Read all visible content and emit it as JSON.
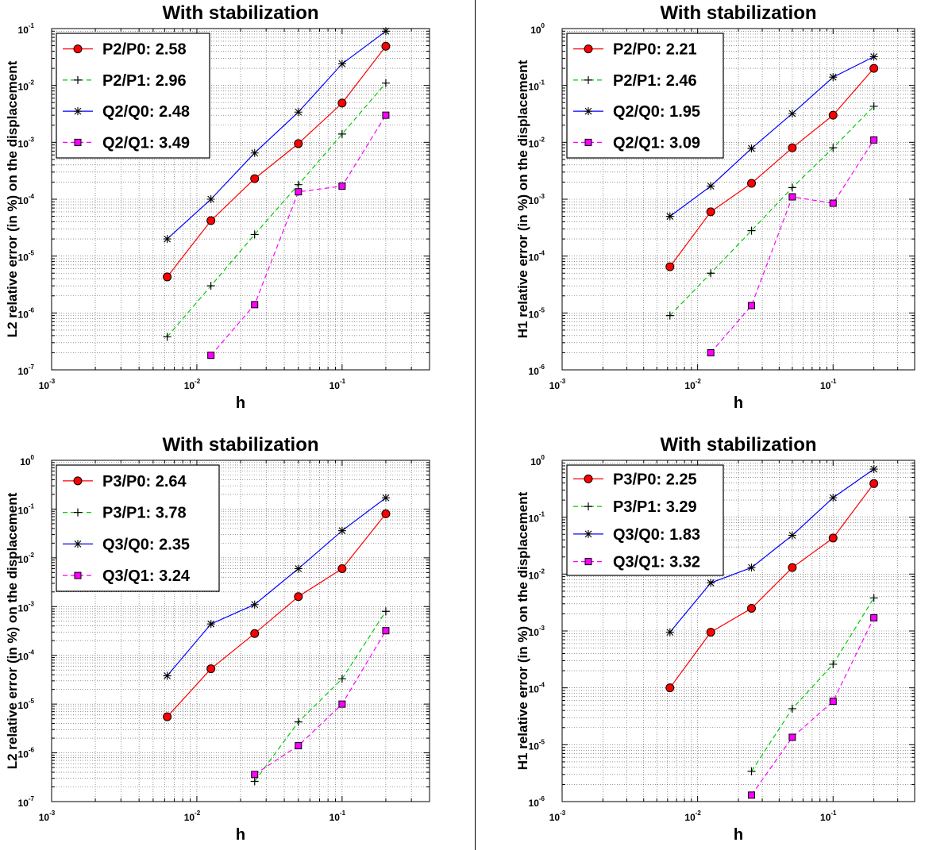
{
  "charts": [
    {
      "title": "With stabilization",
      "xlabel": "h",
      "ylabel": "L2 relative error (in %) on the displacement",
      "xlim": [
        0.001,
        0.4
      ],
      "ylim": [
        1e-07,
        0.1
      ],
      "xticks": [
        {
          "base": "10",
          "exp": "-3",
          "v": 0.001
        },
        {
          "base": "10",
          "exp": "-2",
          "v": 0.01
        },
        {
          "base": "10",
          "exp": "-1",
          "v": 0.1
        }
      ],
      "yticks": [
        {
          "base": "10",
          "exp": "-7",
          "v": 1e-07
        },
        {
          "base": "10",
          "exp": "-6",
          "v": 1e-06
        },
        {
          "base": "10",
          "exp": "-5",
          "v": 1e-05
        },
        {
          "base": "10",
          "exp": "-4",
          "v": 0.0001
        },
        {
          "base": "10",
          "exp": "-3",
          "v": 0.001
        },
        {
          "base": "10",
          "exp": "-2",
          "v": 0.01
        },
        {
          "base": "10",
          "exp": "-1",
          "v": 0.1
        }
      ],
      "legend": [
        "P2/P0: 2.58",
        "P2/P1: 2.96",
        "Q2/Q0: 2.48",
        "Q2/Q1: 3.49"
      ]
    },
    {
      "title": "With stabilization",
      "xlabel": "h",
      "ylabel": "H1 relative error (in %) on the displacement",
      "xlim": [
        0.001,
        0.4
      ],
      "ylim": [
        1e-06,
        1
      ],
      "xticks": [
        {
          "base": "10",
          "exp": "-3",
          "v": 0.001
        },
        {
          "base": "10",
          "exp": "-2",
          "v": 0.01
        },
        {
          "base": "10",
          "exp": "-1",
          "v": 0.1
        }
      ],
      "yticks": [
        {
          "base": "10",
          "exp": "-6",
          "v": 1e-06
        },
        {
          "base": "10",
          "exp": "-5",
          "v": 1e-05
        },
        {
          "base": "10",
          "exp": "-4",
          "v": 0.0001
        },
        {
          "base": "10",
          "exp": "-3",
          "v": 0.001
        },
        {
          "base": "10",
          "exp": "-2",
          "v": 0.01
        },
        {
          "base": "10",
          "exp": "-1",
          "v": 0.1
        },
        {
          "base": "10",
          "exp": "0",
          "v": 1
        }
      ],
      "legend": [
        "P2/P0: 2.21",
        "P2/P1: 2.46",
        "Q2/Q0: 1.95",
        "Q2/Q1: 3.09"
      ]
    },
    {
      "title": "With stabilization",
      "xlabel": "h",
      "ylabel": "L2 relative error (in %) on the displacement",
      "xlim": [
        0.001,
        0.4
      ],
      "ylim": [
        1e-07,
        1
      ],
      "xticks": [
        {
          "base": "10",
          "exp": "-3",
          "v": 0.001
        },
        {
          "base": "10",
          "exp": "-2",
          "v": 0.01
        },
        {
          "base": "10",
          "exp": "-1",
          "v": 0.1
        }
      ],
      "yticks": [
        {
          "base": "10",
          "exp": "-7",
          "v": 1e-07
        },
        {
          "base": "10",
          "exp": "-6",
          "v": 1e-06
        },
        {
          "base": "10",
          "exp": "-5",
          "v": 1e-05
        },
        {
          "base": "10",
          "exp": "-4",
          "v": 0.0001
        },
        {
          "base": "10",
          "exp": "-3",
          "v": 0.001
        },
        {
          "base": "10",
          "exp": "-2",
          "v": 0.01
        },
        {
          "base": "10",
          "exp": "-1",
          "v": 0.1
        },
        {
          "base": "10",
          "exp": "0",
          "v": 1
        }
      ],
      "legend": [
        "P3/P0: 2.64",
        "P3/P1: 3.78",
        "Q3/Q0: 2.35",
        "Q3/Q1: 3.24"
      ]
    },
    {
      "title": "With stabilization",
      "xlabel": "h",
      "ylabel": "H1 relative error (in %) on the displacement",
      "xlim": [
        0.001,
        0.4
      ],
      "ylim": [
        1e-06,
        1
      ],
      "xticks": [
        {
          "base": "10",
          "exp": "-3",
          "v": 0.001
        },
        {
          "base": "10",
          "exp": "-2",
          "v": 0.01
        },
        {
          "base": "10",
          "exp": "-1",
          "v": 0.1
        }
      ],
      "yticks": [
        {
          "base": "10",
          "exp": "-6",
          "v": 1e-06
        },
        {
          "base": "10",
          "exp": "-5",
          "v": 1e-05
        },
        {
          "base": "10",
          "exp": "-4",
          "v": 0.0001
        },
        {
          "base": "10",
          "exp": "-3",
          "v": 0.001
        },
        {
          "base": "10",
          "exp": "-2",
          "v": 0.01
        },
        {
          "base": "10",
          "exp": "-1",
          "v": 0.1
        },
        {
          "base": "10",
          "exp": "0",
          "v": 1
        }
      ],
      "legend": [
        "P3/P0: 2.25",
        "P3/P1: 3.29",
        "Q3/Q0: 1.83",
        "Q3/Q1: 3.32"
      ]
    }
  ],
  "series_styles": [
    {
      "color": "#ff0000",
      "dash": "",
      "marker": "circle",
      "marker_fill": "#ff0000"
    },
    {
      "color": "#00cc00",
      "dash": "6,4",
      "marker": "plus",
      "marker_fill": "none"
    },
    {
      "color": "#0000ff",
      "dash": "",
      "marker": "star",
      "marker_fill": "none"
    },
    {
      "color": "#ff00ff",
      "dash": "6,4",
      "marker": "square",
      "marker_fill": "#ff00ff"
    }
  ],
  "chart_data": [
    {
      "type": "line",
      "scale": "loglog",
      "title": "With stabilization",
      "xlabel": "h",
      "ylabel": "L2 relative error (in %) on the displacement",
      "xlim": [
        0.001,
        0.4
      ],
      "ylim": [
        1e-07,
        0.1
      ],
      "grid": true,
      "legend": "top-left",
      "series": [
        {
          "name": "P2/P0: 2.58",
          "x": [
            0.00625,
            0.0125,
            0.025,
            0.05,
            0.1,
            0.2
          ],
          "values": [
            4.3e-06,
            4.2e-05,
            0.00023,
            0.00095,
            0.0049,
            0.049
          ]
        },
        {
          "name": "P2/P1: 2.96",
          "x": [
            0.00625,
            0.0125,
            0.025,
            0.05,
            0.1,
            0.2
          ],
          "values": [
            3.8e-07,
            3e-06,
            2.4e-05,
            0.00018,
            0.0014,
            0.011
          ]
        },
        {
          "name": "Q2/Q0: 2.48",
          "x": [
            0.00625,
            0.0125,
            0.025,
            0.05,
            0.1,
            0.2
          ],
          "values": [
            2e-05,
            0.0001,
            0.00065,
            0.0034,
            0.024,
            0.09
          ]
        },
        {
          "name": "Q2/Q1: 3.49",
          "x": [
            0.0125,
            0.025,
            0.05,
            0.1,
            0.2
          ],
          "values": [
            1.8e-07,
            1.4e-06,
            0.000135,
            0.00017,
            0.003
          ]
        }
      ]
    },
    {
      "type": "line",
      "scale": "loglog",
      "title": "With stabilization",
      "xlabel": "h",
      "ylabel": "H1 relative error (in %) on the displacement",
      "xlim": [
        0.001,
        0.4
      ],
      "ylim": [
        1e-06,
        1
      ],
      "grid": true,
      "legend": "top-left",
      "series": [
        {
          "name": "P2/P0: 2.21",
          "x": [
            0.00625,
            0.0125,
            0.025,
            0.05,
            0.1,
            0.2
          ],
          "values": [
            6.5e-05,
            0.0006,
            0.0019,
            0.008,
            0.03,
            0.2
          ]
        },
        {
          "name": "P2/P1: 2.46",
          "x": [
            0.00625,
            0.0125,
            0.025,
            0.05,
            0.1,
            0.2
          ],
          "values": [
            9e-06,
            5e-05,
            0.00028,
            0.0016,
            0.008,
            0.043
          ]
        },
        {
          "name": "Q2/Q0: 1.95",
          "x": [
            0.00625,
            0.0125,
            0.025,
            0.05,
            0.1,
            0.2
          ],
          "values": [
            0.0005,
            0.0017,
            0.0078,
            0.032,
            0.14,
            0.32
          ]
        },
        {
          "name": "Q2/Q1: 3.09",
          "x": [
            0.0125,
            0.025,
            0.05,
            0.1,
            0.2
          ],
          "values": [
            2e-06,
            1.35e-05,
            0.0011,
            0.00085,
            0.011
          ]
        }
      ]
    },
    {
      "type": "line",
      "scale": "loglog",
      "title": "With stabilization",
      "xlabel": "h",
      "ylabel": "L2 relative error (in %) on the displacement",
      "xlim": [
        0.001,
        0.4
      ],
      "ylim": [
        1e-07,
        1
      ],
      "grid": true,
      "legend": "top-left",
      "series": [
        {
          "name": "P3/P0: 2.64",
          "x": [
            0.00625,
            0.0125,
            0.025,
            0.05,
            0.1,
            0.2
          ],
          "values": [
            5.5e-06,
            5.3e-05,
            0.00028,
            0.0016,
            0.006,
            0.08
          ]
        },
        {
          "name": "P3/P1: 3.78",
          "x": [
            0.025,
            0.05,
            0.1,
            0.2
          ],
          "values": [
            2.6e-07,
            4.3e-06,
            3.3e-05,
            0.0008
          ]
        },
        {
          "name": "Q3/Q0: 2.35",
          "x": [
            0.00625,
            0.0125,
            0.025,
            0.05,
            0.1,
            0.2
          ],
          "values": [
            3.8e-05,
            0.00044,
            0.0011,
            0.006,
            0.036,
            0.17
          ]
        },
        {
          "name": "Q3/Q1: 3.24",
          "x": [
            0.025,
            0.05,
            0.1,
            0.2
          ],
          "values": [
            3.6e-07,
            1.4e-06,
            1e-05,
            0.00032
          ]
        }
      ]
    },
    {
      "type": "line",
      "scale": "loglog",
      "title": "With stabilization",
      "xlabel": "h",
      "ylabel": "H1 relative error (in %) on the displacement",
      "xlim": [
        0.001,
        0.4
      ],
      "ylim": [
        1e-06,
        1
      ],
      "grid": true,
      "legend": "top-left",
      "series": [
        {
          "name": "P3/P0: 2.25",
          "x": [
            0.00625,
            0.0125,
            0.025,
            0.05,
            0.1,
            0.2
          ],
          "values": [
            0.0001,
            0.00095,
            0.0025,
            0.013,
            0.043,
            0.39
          ]
        },
        {
          "name": "P3/P1: 3.29",
          "x": [
            0.025,
            0.05,
            0.1,
            0.2
          ],
          "values": [
            3.4e-06,
            4.3e-05,
            0.00026,
            0.0038
          ]
        },
        {
          "name": "Q3/Q0: 1.83",
          "x": [
            0.00625,
            0.0125,
            0.025,
            0.05,
            0.1,
            0.2
          ],
          "values": [
            0.00095,
            0.007,
            0.013,
            0.048,
            0.22,
            0.7
          ]
        },
        {
          "name": "Q3/Q1: 3.32",
          "x": [
            0.025,
            0.05,
            0.1,
            0.2
          ],
          "values": [
            1.3e-06,
            1.35e-05,
            5.8e-05,
            0.0017
          ]
        }
      ]
    }
  ]
}
